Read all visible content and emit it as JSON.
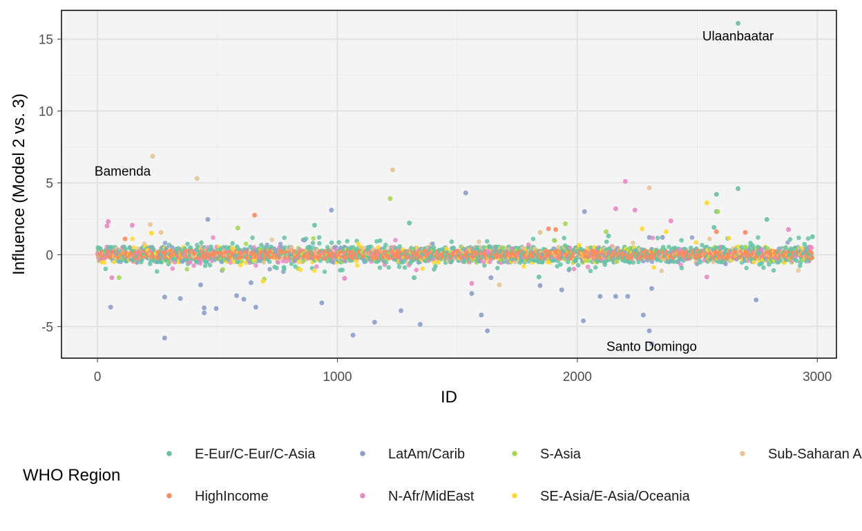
{
  "chart_data": {
    "type": "scatter",
    "xlabel": "ID",
    "ylabel": "Influence (Model 2 vs. 3)",
    "xlim": [
      -150,
      3080
    ],
    "ylim": [
      -7.2,
      17.0
    ],
    "x_ticks": [
      0,
      1000,
      2000,
      3000
    ],
    "y_ticks": [
      -5,
      0,
      5,
      10,
      15
    ],
    "y_tick_labels": [
      "-5",
      "0",
      "5",
      "10",
      "15"
    ],
    "grid": true,
    "legend_title": "WHO Region",
    "legend_position": "bottom",
    "series": [
      {
        "name": "E-Eur/C-Eur/C-Asia",
        "color": "#66C2A5"
      },
      {
        "name": "HighIncome",
        "color": "#FC8D62"
      },
      {
        "name": "LatAm/Carib",
        "color": "#8DA0CB"
      },
      {
        "name": "N-Afr/MidEast",
        "color": "#E78AC3"
      },
      {
        "name": "S-Asia",
        "color": "#A6D854"
      },
      {
        "name": "SE-Asia/E-Asia/Oceania",
        "color": "#FFD92F"
      },
      {
        "name": "Sub-Saharan Africa",
        "color": "#E5C494"
      }
    ],
    "highlight_points": [
      {
        "region": 0,
        "x": 2670,
        "y": 16.1
      },
      {
        "region": 0,
        "x": 2670,
        "y": 4.6
      },
      {
        "region": 0,
        "x": 2580,
        "y": 4.2
      },
      {
        "region": 0,
        "x": 2580,
        "y": 3.0
      },
      {
        "region": 0,
        "x": 905,
        "y": 2.05
      },
      {
        "region": 0,
        "x": 1300,
        "y": 2.2
      },
      {
        "region": 0,
        "x": 2790,
        "y": 2.45
      },
      {
        "region": 0,
        "x": 2570,
        "y": 1.9
      },
      {
        "region": 0,
        "x": 2130,
        "y": 1.3
      },
      {
        "region": 0,
        "x": 2980,
        "y": 1.25
      },
      {
        "region": 0,
        "x": 1320,
        "y": -1.6
      },
      {
        "region": 0,
        "x": 1840,
        "y": -1.55
      },
      {
        "region": 1,
        "x": 655,
        "y": 2.75
      },
      {
        "region": 1,
        "x": 1880,
        "y": 1.8
      },
      {
        "region": 1,
        "x": 1910,
        "y": 1.75
      },
      {
        "region": 1,
        "x": 2580,
        "y": 1.6
      },
      {
        "region": 1,
        "x": 2700,
        "y": 1.55
      },
      {
        "region": 1,
        "x": 115,
        "y": 1.1
      },
      {
        "region": 2,
        "x": 1535,
        "y": 4.3
      },
      {
        "region": 2,
        "x": 975,
        "y": 3.1
      },
      {
        "region": 2,
        "x": 2030,
        "y": 3.0
      },
      {
        "region": 2,
        "x": 460,
        "y": 2.45
      },
      {
        "region": 2,
        "x": 2300,
        "y": 1.2
      },
      {
        "region": 2,
        "x": 2355,
        "y": 1.2
      },
      {
        "region": 2,
        "x": 2310,
        "y": -6.2
      },
      {
        "region": 2,
        "x": 2300,
        "y": -5.3
      },
      {
        "region": 2,
        "x": 1065,
        "y": -5.6
      },
      {
        "region": 2,
        "x": 280,
        "y": -5.8
      },
      {
        "region": 2,
        "x": 1155,
        "y": -4.7
      },
      {
        "region": 2,
        "x": 2025,
        "y": -4.6
      },
      {
        "region": 2,
        "x": 1345,
        "y": -4.85
      },
      {
        "region": 2,
        "x": 1625,
        "y": -5.3
      },
      {
        "region": 2,
        "x": 2275,
        "y": -4.2
      },
      {
        "region": 2,
        "x": 1600,
        "y": -4.2
      },
      {
        "region": 2,
        "x": 445,
        "y": -4.05
      },
      {
        "region": 2,
        "x": 445,
        "y": -3.7
      },
      {
        "region": 2,
        "x": 495,
        "y": -3.75
      },
      {
        "region": 2,
        "x": 660,
        "y": -3.65
      },
      {
        "region": 2,
        "x": 55,
        "y": -3.65
      },
      {
        "region": 2,
        "x": 935,
        "y": -3.35
      },
      {
        "region": 2,
        "x": 1265,
        "y": -3.9
      },
      {
        "region": 2,
        "x": 2745,
        "y": -3.15
      },
      {
        "region": 2,
        "x": 610,
        "y": -3.1
      },
      {
        "region": 2,
        "x": 345,
        "y": -3.05
      },
      {
        "region": 2,
        "x": 280,
        "y": -2.95
      },
      {
        "region": 2,
        "x": 580,
        "y": -2.85
      },
      {
        "region": 2,
        "x": 2210,
        "y": -2.9
      },
      {
        "region": 2,
        "x": 2160,
        "y": -2.9
      },
      {
        "region": 2,
        "x": 2095,
        "y": -2.9
      },
      {
        "region": 2,
        "x": 1560,
        "y": -2.7
      },
      {
        "region": 2,
        "x": 1935,
        "y": -2.45
      },
      {
        "region": 2,
        "x": 2310,
        "y": -2.35
      },
      {
        "region": 2,
        "x": 1845,
        "y": -2.15
      },
      {
        "region": 2,
        "x": 430,
        "y": -2.1
      },
      {
        "region": 2,
        "x": 640,
        "y": -1.95
      },
      {
        "region": 2,
        "x": 1640,
        "y": -1.6
      },
      {
        "region": 3,
        "x": 2200,
        "y": 5.1
      },
      {
        "region": 3,
        "x": 2160,
        "y": 3.2
      },
      {
        "region": 3,
        "x": 2240,
        "y": 3.1
      },
      {
        "region": 3,
        "x": 2390,
        "y": 2.35
      },
      {
        "region": 3,
        "x": 45,
        "y": 2.3
      },
      {
        "region": 3,
        "x": 40,
        "y": 2.0
      },
      {
        "region": 3,
        "x": 145,
        "y": 2.05
      },
      {
        "region": 3,
        "x": 2880,
        "y": 1.75
      },
      {
        "region": 3,
        "x": 1560,
        "y": -2.0
      },
      {
        "region": 3,
        "x": 1030,
        "y": -1.65
      },
      {
        "region": 3,
        "x": 60,
        "y": -1.6
      },
      {
        "region": 3,
        "x": 2540,
        "y": -1.55
      },
      {
        "region": 4,
        "x": 1220,
        "y": 3.9
      },
      {
        "region": 4,
        "x": 2585,
        "y": 3.0
      },
      {
        "region": 4,
        "x": 1950,
        "y": 2.15
      },
      {
        "region": 4,
        "x": 585,
        "y": 1.85
      },
      {
        "region": 4,
        "x": 2120,
        "y": 1.6
      },
      {
        "region": 4,
        "x": 90,
        "y": -1.6
      },
      {
        "region": 4,
        "x": 695,
        "y": -1.7
      },
      {
        "region": 5,
        "x": 2540,
        "y": 3.6
      },
      {
        "region": 5,
        "x": 2270,
        "y": 1.8
      },
      {
        "region": 5,
        "x": 2370,
        "y": 1.6
      },
      {
        "region": 5,
        "x": 225,
        "y": 1.5
      },
      {
        "region": 5,
        "x": 690,
        "y": -1.85
      },
      {
        "region": 6,
        "x": 230,
        "y": 6.85
      },
      {
        "region": 6,
        "x": 1230,
        "y": 5.9
      },
      {
        "region": 6,
        "x": 415,
        "y": 5.3
      },
      {
        "region": 6,
        "x": 2300,
        "y": 4.65
      },
      {
        "region": 6,
        "x": 220,
        "y": 2.1
      },
      {
        "region": 6,
        "x": 265,
        "y": 1.55
      },
      {
        "region": 6,
        "x": 1845,
        "y": 1.55
      },
      {
        "region": 6,
        "x": 1675,
        "y": -2.1
      }
    ],
    "annotations": [
      {
        "text": "Ulaanbaatar",
        "x": 2670,
        "y": 15.2
      },
      {
        "text": "Bamenda",
        "x": 105,
        "y": 5.8
      },
      {
        "text": "Santo Domingo",
        "x": 2310,
        "y": -6.4
      }
    ]
  }
}
